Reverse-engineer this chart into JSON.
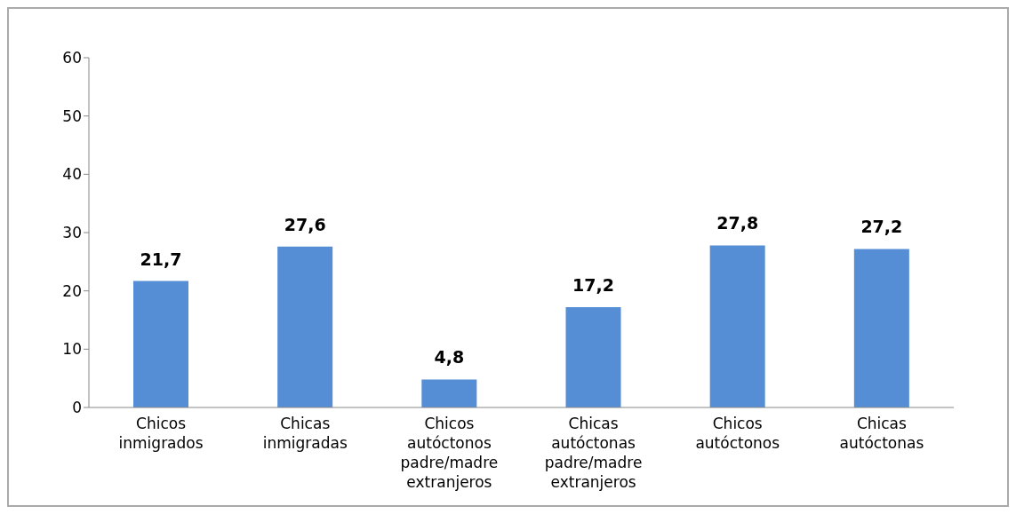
{
  "chart_data": {
    "type": "bar",
    "categories": [
      "Chicos inmigrados",
      "Chicas inmigradas",
      "Chicos autóctonos padre/madre extranjeros",
      "Chicas autóctonas padre/madre extranjeros",
      "Chicos autóctonos",
      "Chicas autóctonas"
    ],
    "values": [
      21.7,
      27.6,
      4.8,
      17.2,
      27.8,
      27.2
    ],
    "value_labels": [
      "21,7",
      "27,6",
      "4,8",
      "17,2",
      "27,8",
      "27,2"
    ],
    "color": "#558ed5",
    "ylim": [
      0,
      60
    ],
    "yticks": [
      0,
      10,
      20,
      30,
      40,
      50,
      60
    ],
    "grid": false,
    "legend": false
  }
}
